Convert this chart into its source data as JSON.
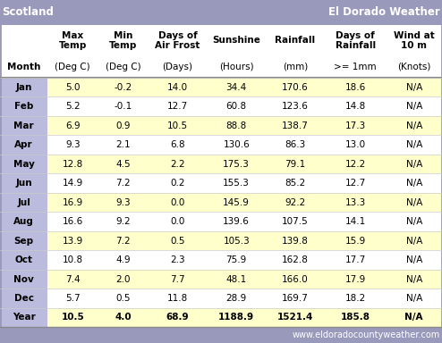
{
  "title_left": "Scotland",
  "title_right": "El Dorado Weather",
  "header_bg": "#9999bb",
  "header_text_color": "#ffffff",
  "col_headers_1": [
    "",
    "Max\nTemp",
    "Min\nTemp",
    "Days of\nAir Frost",
    "Sunshine",
    "Rainfall",
    "Days of\nRainfall",
    "Wind at\n10 m"
  ],
  "col_headers_2": [
    "Month",
    "(Deg C)",
    "(Deg C)",
    "(Days)",
    "(Hours)",
    "(mm)",
    ">= 1mm",
    "(Knots)"
  ],
  "months": [
    "Jan",
    "Feb",
    "Mar",
    "Apr",
    "May",
    "Jun",
    "Jul",
    "Aug",
    "Sep",
    "Oct",
    "Nov",
    "Dec",
    "Year"
  ],
  "max_temp": [
    5.0,
    5.2,
    6.9,
    9.3,
    12.8,
    14.9,
    16.9,
    16.6,
    13.9,
    10.8,
    7.4,
    5.7,
    10.5
  ],
  "min_temp": [
    -0.2,
    -0.1,
    0.9,
    2.1,
    4.5,
    7.2,
    9.3,
    9.2,
    7.2,
    4.9,
    2.0,
    0.5,
    4.0
  ],
  "air_frost": [
    14.0,
    12.7,
    10.5,
    6.8,
    2.2,
    0.2,
    0.0,
    0.0,
    0.5,
    2.3,
    7.7,
    11.8,
    68.9
  ],
  "sunshine": [
    34.4,
    60.8,
    88.8,
    130.6,
    175.3,
    155.3,
    145.9,
    139.6,
    105.3,
    75.9,
    48.1,
    28.9,
    1188.9
  ],
  "rainfall": [
    170.6,
    123.6,
    138.7,
    86.3,
    79.1,
    85.2,
    92.2,
    107.5,
    139.8,
    162.8,
    166.0,
    169.7,
    1521.4
  ],
  "days_rain": [
    18.6,
    14.8,
    17.3,
    13.0,
    12.2,
    12.7,
    13.3,
    14.1,
    15.9,
    17.7,
    17.9,
    18.2,
    185.8
  ],
  "wind": [
    "N/A",
    "N/A",
    "N/A",
    "N/A",
    "N/A",
    "N/A",
    "N/A",
    "N/A",
    "N/A",
    "N/A",
    "N/A",
    "N/A",
    "N/A"
  ],
  "row_bg_odd": "#ffffcc",
  "row_bg_even": "#ffffff",
  "month_col_bg": "#bbbbdd",
  "footer_text": "www.eldoradocountyweather.com",
  "footer_bg": "#9999bb",
  "outer_border_color": "#9999bb",
  "grid_color": "#cccccc",
  "font_size": 7.5,
  "header_font_size": 7.5
}
